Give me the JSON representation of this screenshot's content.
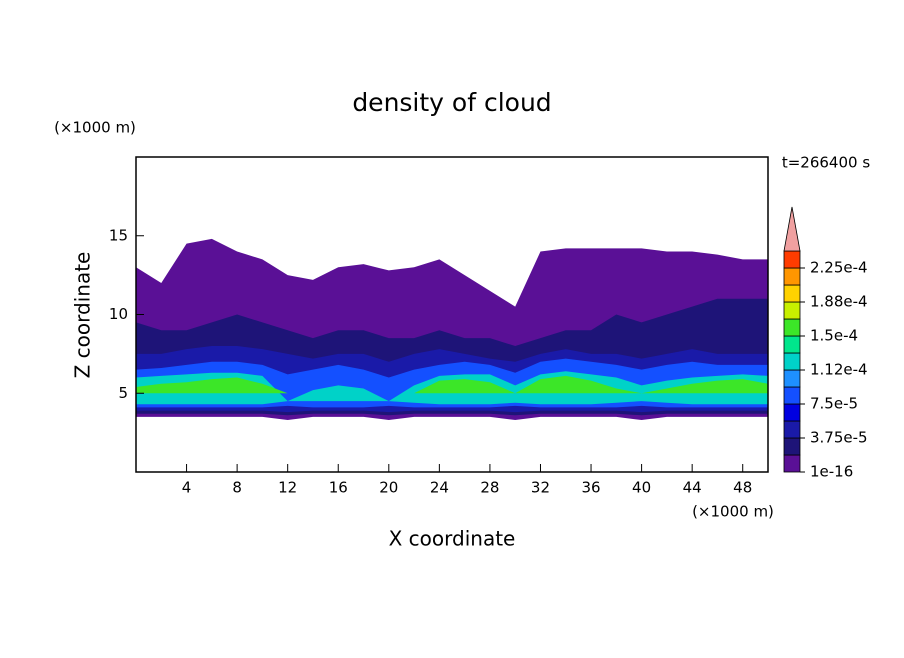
{
  "chart_data": {
    "type": "contour",
    "title": "density of cloud",
    "x_label": "X coordinate",
    "y_label": "Z coordinate",
    "x_unit": "(×1000 m)",
    "y_unit": "(×1000 m)",
    "time_label": "t=266400 s",
    "xlim": [
      0,
      50
    ],
    "ylim": [
      0,
      20
    ],
    "xticks": [
      4,
      8,
      12,
      16,
      20,
      24,
      28,
      32,
      36,
      40,
      44,
      48
    ],
    "yticks": [
      5,
      10,
      15
    ],
    "x": [
      0,
      2,
      4,
      6,
      8,
      10,
      12,
      14,
      16,
      18,
      20,
      22,
      24,
      26,
      28,
      30,
      32,
      34,
      36,
      38,
      40,
      42,
      44,
      46,
      48,
      50
    ],
    "layers": [
      {
        "level": 1e-16,
        "z_top": [
          13,
          12,
          14.5,
          14.8,
          14,
          13.5,
          12.5,
          12.2,
          13,
          13.2,
          12.8,
          13,
          13.5,
          12.5,
          11.5,
          10.5,
          14,
          14.2,
          14.2,
          14.2,
          14.2,
          14,
          14,
          13.8,
          13.5,
          13.5
        ],
        "z_bottom": [
          3.5,
          3.5,
          3.5,
          3.5,
          3.5,
          3.5,
          3.3,
          3.5,
          3.5,
          3.5,
          3.3,
          3.5,
          3.5,
          3.5,
          3.5,
          3.3,
          3.5,
          3.5,
          3.5,
          3.5,
          3.3,
          3.5,
          3.5,
          3.5,
          3.5,
          3.5
        ]
      },
      {
        "level": 1.875e-05,
        "z_top": [
          9.5,
          9,
          9,
          9.5,
          10,
          9.5,
          9,
          8.5,
          9,
          9,
          8.5,
          8.5,
          9,
          8.5,
          8.5,
          8,
          8.5,
          9,
          9,
          10,
          9.5,
          10,
          10.5,
          11,
          11,
          11
        ],
        "z_bottom": [
          3.7,
          3.7,
          3.7,
          3.7,
          3.7,
          3.7,
          3.6,
          3.7,
          3.7,
          3.7,
          3.6,
          3.7,
          3.7,
          3.7,
          3.7,
          3.6,
          3.7,
          3.7,
          3.7,
          3.7,
          3.6,
          3.7,
          3.7,
          3.7,
          3.7,
          3.7
        ]
      },
      {
        "level": 3.75e-05,
        "z_top": [
          7.5,
          7.5,
          7.8,
          8,
          8,
          7.8,
          7.5,
          7.2,
          7.5,
          7.5,
          7,
          7.5,
          7.8,
          7.5,
          7.2,
          7,
          7.5,
          7.8,
          7.5,
          7.5,
          7.2,
          7.5,
          7.8,
          7.5,
          7.5,
          7.5
        ],
        "z_bottom": [
          3.9,
          3.9,
          3.9,
          3.9,
          3.9,
          3.9,
          3.8,
          3.9,
          3.9,
          3.9,
          3.8,
          3.9,
          3.9,
          3.9,
          3.9,
          3.8,
          3.9,
          3.9,
          3.9,
          3.9,
          3.8,
          3.9,
          3.9,
          3.9,
          3.9,
          3.9
        ]
      },
      {
        "level": 7.5e-05,
        "z_top": [
          6.5,
          6.6,
          6.8,
          7,
          7,
          6.8,
          6.2,
          6.5,
          6.8,
          6.5,
          6,
          6.5,
          6.8,
          7,
          6.8,
          6.3,
          7,
          7.2,
          7,
          6.8,
          6.5,
          6.8,
          7,
          6.8,
          6.8,
          6.8
        ],
        "z_bottom": [
          4.1,
          4.1,
          4.1,
          4.1,
          4.1,
          4.1,
          4.2,
          4.1,
          4.1,
          4.1,
          4.2,
          4.1,
          4.1,
          4.1,
          4.1,
          4.2,
          4.1,
          4.1,
          4.1,
          4.1,
          4.2,
          4.1,
          4.1,
          4.1,
          4.1,
          4.1
        ]
      },
      {
        "level": 0.0001125,
        "z_top": [
          6,
          6.1,
          6.2,
          6.3,
          6.3,
          6.1,
          4.5,
          5.2,
          5.5,
          5.3,
          4.5,
          5.5,
          6.1,
          6.2,
          6.2,
          5.5,
          6.2,
          6.4,
          6.2,
          6,
          5.5,
          5.8,
          6,
          6.1,
          6.2,
          6.1
        ],
        "z_bottom": [
          4.3,
          4.3,
          4.3,
          4.3,
          4.3,
          4.3,
          4.5,
          4.5,
          4.5,
          4.5,
          4.5,
          4.4,
          4.3,
          4.3,
          4.3,
          4.4,
          4.3,
          4.3,
          4.3,
          4.4,
          4.5,
          4.4,
          4.3,
          4.3,
          4.3,
          4.3
        ]
      },
      {
        "level": 0.00015,
        "z_top": [
          5.4,
          5.6,
          5.7,
          5.9,
          6,
          5.6,
          5,
          5,
          5,
          5,
          5,
          5,
          5.8,
          5.9,
          5.7,
          5,
          5.9,
          6.1,
          5.8,
          5.3,
          5,
          5.3,
          5.6,
          5.8,
          5.9,
          5.6
        ],
        "z_bottom": [
          5,
          5,
          5,
          5,
          5,
          5,
          5,
          5,
          5,
          5,
          5,
          5,
          5,
          5,
          5,
          5,
          5,
          5,
          5,
          5,
          5,
          5,
          5,
          5,
          5,
          5
        ]
      }
    ],
    "colorbar": {
      "levels": [
        1e-16,
        1.875e-05,
        3.75e-05,
        5.625e-05,
        7.5e-05,
        9.375e-05,
        0.0001125,
        0.00013125,
        0.00015,
        0.00016875,
        0.0001875,
        0.00020625,
        0.000225,
        0.00024375
      ],
      "ticks": [
        {
          "value": 1e-16,
          "label": "1e-16"
        },
        {
          "value": 3.75e-05,
          "label": "3.75e-5"
        },
        {
          "value": 7.5e-05,
          "label": "7.5e-5"
        },
        {
          "value": 0.0001125,
          "label": "1.12e-4"
        },
        {
          "value": 0.00015,
          "label": "1.5e-4"
        },
        {
          "value": 0.0001875,
          "label": "1.88e-4"
        },
        {
          "value": 0.000225,
          "label": "2.25e-4"
        }
      ],
      "colors": [
        "#5a1096",
        "#1e1478",
        "#1a1aa8",
        "#0000e0",
        "#1450ff",
        "#1e90ff",
        "#00d2c8",
        "#00e68c",
        "#3ce628",
        "#c8f000",
        "#ffd200",
        "#ff9600",
        "#ff3c00"
      ],
      "extend_color": "#f0a0a0"
    }
  }
}
